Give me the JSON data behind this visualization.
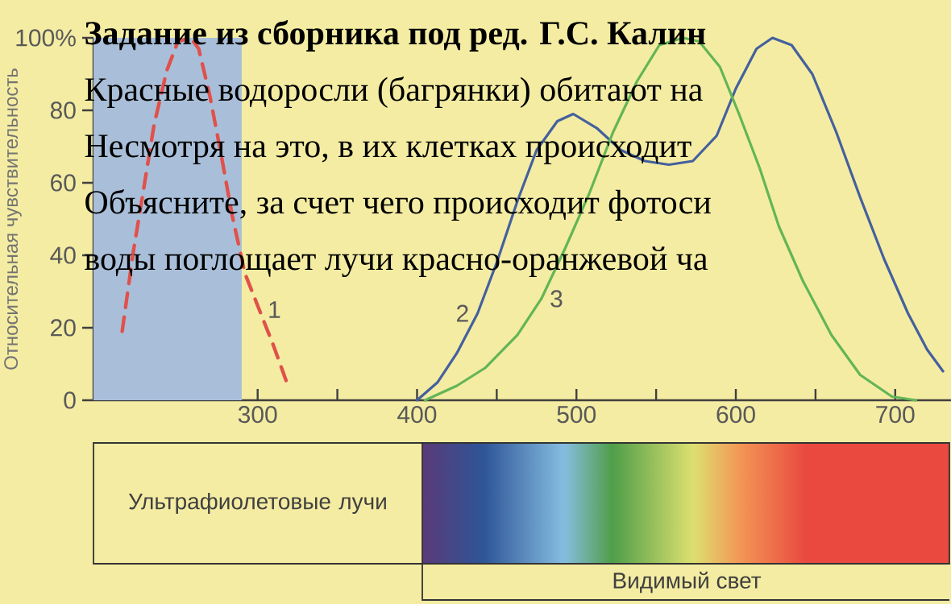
{
  "chart_data": {
    "type": "line",
    "title": "Задание из сборника под ред. Г.С. Калин",
    "ylabel": "Относительная чувствительность",
    "annotations": [
      "Красные водоросли (багрянки) обитают на",
      "Несмотря на это, в их клетках происходит",
      "Объясните, за счет чего происходит фотоси",
      "воды поглощает лучи красно-оранжевой ча",
      "Ультрафиолетовые лучи",
      "Видимый свет"
    ],
    "marker": "none",
    "xlim": [
      197,
      735
    ],
    "ylim": [
      0,
      100
    ],
    "xticks": [
      {
        "value": 250,
        "label": null
      },
      300,
      {
        "value": 350,
        "label": null
      },
      400,
      {
        "value": 450,
        "label": null
      },
      500,
      {
        "value": 550,
        "label": null
      },
      600,
      {
        "value": 650,
        "label": null
      },
      700
    ],
    "yticks": [
      0,
      20,
      40,
      60,
      80,
      {
        "value": 100,
        "label": "100%"
      }
    ],
    "bands": [
      {
        "axis": "x",
        "from": 197,
        "to": 290,
        "color": "#a9bfd9"
      }
    ],
    "series": [
      {
        "name": "1",
        "color": "#e0514b",
        "line_style": "dashed",
        "x": [
          215,
          222,
          228,
          235,
          243,
          250,
          258,
          263,
          270,
          277,
          284,
          292,
          301,
          310,
          319
        ],
        "values": [
          19,
          41,
          57,
          76,
          91,
          99,
          100,
          97,
          84,
          68,
          51,
          35,
          25,
          15,
          4
        ]
      },
      {
        "name": "2",
        "color": "#44609e",
        "x": [
          400,
          413,
          425,
          438,
          450,
          463,
          475,
          488,
          498,
          513,
          528,
          543,
          558,
          573,
          588,
          600,
          613,
          623,
          635,
          648,
          663,
          678,
          693,
          708,
          720,
          730
        ],
        "values": [
          0,
          5,
          13,
          24,
          38,
          55,
          69,
          77,
          79,
          75,
          69,
          66,
          65,
          66,
          73,
          86,
          97,
          100,
          98,
          90,
          74,
          56,
          39,
          24,
          14,
          8
        ]
      },
      {
        "name": "3",
        "color": "#63b556",
        "x": [
          405,
          425,
          443,
          463,
          478,
          493,
          508,
          523,
          538,
          552,
          567,
          577,
          590,
          602,
          615,
          627,
          642,
          660,
          678,
          698,
          713
        ],
        "values": [
          0,
          4,
          9,
          18,
          28,
          42,
          57,
          74,
          88,
          98,
          100,
          99,
          92,
          79,
          64,
          48,
          33,
          18,
          7,
          1,
          0
        ]
      }
    ]
  }
}
